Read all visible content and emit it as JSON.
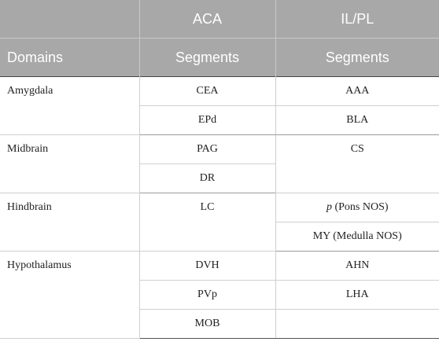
{
  "header": {
    "col2_top": "ACA",
    "col3_top": "IL/PL",
    "col1_label": "Domains",
    "col2_label": "Segments",
    "col3_label": "Segments"
  },
  "rows": {
    "amygdala": {
      "domain": "Amygdala",
      "aca": [
        "CEA",
        "EPd"
      ],
      "ilpl": [
        "AAA",
        "BLA"
      ]
    },
    "midbrain": {
      "domain": "Midbrain",
      "aca": [
        "PAG",
        "DR"
      ],
      "ilpl": [
        "CS"
      ]
    },
    "hindbrain": {
      "domain": "Hindbrain",
      "aca": [
        "LC"
      ],
      "ilpl_p_symbol": "p",
      "ilpl_p_rest": " (Pons NOS)",
      "ilpl": [
        "MY (Medulla NOS)"
      ]
    },
    "hypothalamus": {
      "domain": "Hypothalamus",
      "aca": [
        "DVH",
        "PVp",
        "MOB"
      ],
      "ilpl": [
        "AHN",
        "LHA"
      ]
    }
  }
}
